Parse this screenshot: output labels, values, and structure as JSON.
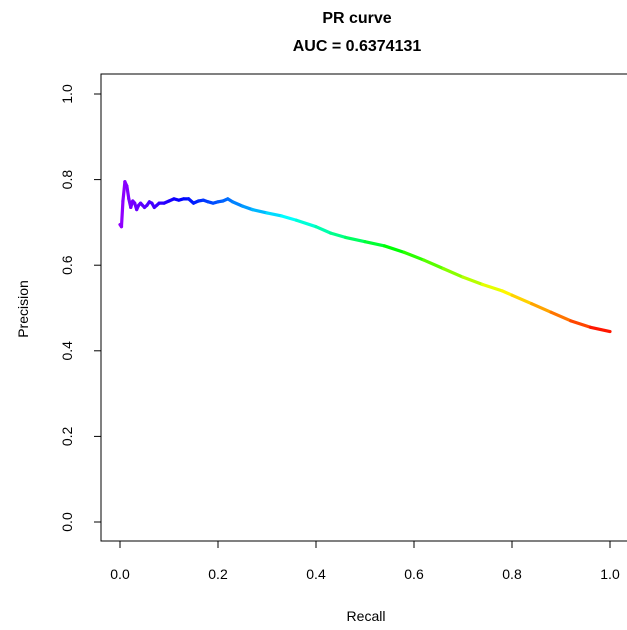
{
  "chart_data": {
    "type": "line",
    "title": "PR curve",
    "subtitle": "AUC = 0.6374131",
    "xlabel": "Recall",
    "ylabel": "Precision",
    "xlim": [
      0,
      1
    ],
    "ylim": [
      0,
      1
    ],
    "x_ticks": [
      "0.0",
      "0.2",
      "0.4",
      "0.6",
      "0.8",
      "1.0"
    ],
    "y_ticks": [
      "0.0",
      "0.2",
      "0.4",
      "0.6",
      "0.8",
      "1.0"
    ],
    "grid": false,
    "legend": "none",
    "color_scale": "rainbow (violet at low recall through blue, cyan, green, yellow to red at high recall)",
    "series": [
      {
        "x": [
          0.0,
          0.003,
          0.006,
          0.01,
          0.014,
          0.018,
          0.022,
          0.026,
          0.03,
          0.034,
          0.038,
          0.042,
          0.046,
          0.05,
          0.055,
          0.06,
          0.065,
          0.07,
          0.075,
          0.08,
          0.09,
          0.1,
          0.11,
          0.12,
          0.13,
          0.14,
          0.15,
          0.16,
          0.17,
          0.18,
          0.19,
          0.2,
          0.21,
          0.22,
          0.23,
          0.25,
          0.27,
          0.3,
          0.33,
          0.36,
          0.4,
          0.43,
          0.46,
          0.5,
          0.54,
          0.58,
          0.62,
          0.66,
          0.7,
          0.74,
          0.78,
          0.8,
          0.84,
          0.88,
          0.92,
          0.96,
          1.0
        ],
        "values": [
          0.695,
          0.69,
          0.75,
          0.795,
          0.785,
          0.755,
          0.735,
          0.75,
          0.745,
          0.73,
          0.74,
          0.745,
          0.74,
          0.735,
          0.74,
          0.748,
          0.745,
          0.735,
          0.74,
          0.745,
          0.745,
          0.75,
          0.755,
          0.752,
          0.755,
          0.755,
          0.745,
          0.75,
          0.752,
          0.748,
          0.745,
          0.748,
          0.75,
          0.755,
          0.748,
          0.738,
          0.73,
          0.722,
          0.715,
          0.705,
          0.69,
          0.675,
          0.665,
          0.655,
          0.645,
          0.63,
          0.612,
          0.592,
          0.572,
          0.555,
          0.54,
          0.53,
          0.51,
          0.49,
          0.47,
          0.455,
          0.445
        ]
      }
    ]
  }
}
